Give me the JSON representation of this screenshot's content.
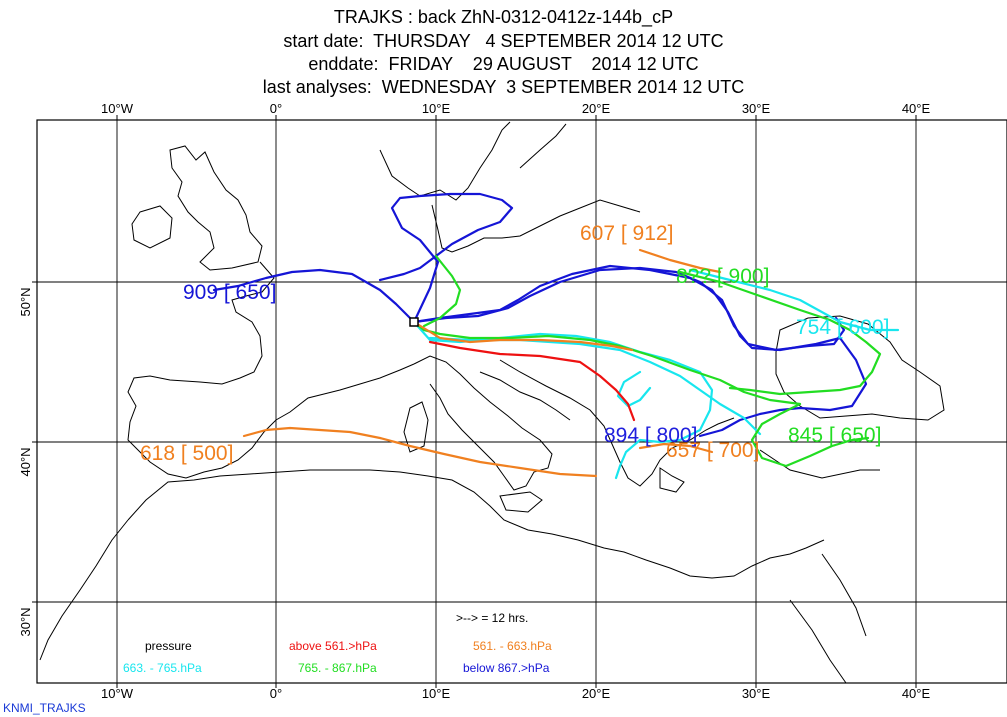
{
  "header": {
    "line1": "TRAJKS : back ZhN-0312-0412z-144b_cP",
    "line2": "start date:  THURSDAY   4 SEPTEMBER 2014 12 UTC",
    "line3": "enddate:  FRIDAY    29 AUGUST    2014 12 UTC",
    "line4": "last analyses:  WEDNESDAY  3 SEPTEMBER 2014 12 UTC"
  },
  "axes": {
    "lon_labels": [
      "10°W",
      "0°",
      "10°E",
      "20°E",
      "30°E",
      "40°E"
    ],
    "lat_labels": [
      "50°N",
      "40°N",
      "30°N"
    ]
  },
  "trajectories": [
    {
      "label": "909 [ 650]",
      "color": "#1515d6"
    },
    {
      "label": "607 [ 912]",
      "color": "#f08020"
    },
    {
      "label": "618 [ 500]",
      "color": "#f08020"
    },
    {
      "label": "754 [ 600]",
      "color": "#18e6ee"
    },
    {
      "label": "894 [ 800]",
      "color": "#2020dd"
    },
    {
      "label": "657 [ 700]",
      "color": "#f08020"
    },
    {
      "label": "845 [ 650]",
      "color": "#22dd22"
    },
    {
      "label": "8?? [ 900]",
      "color": "#22dd22"
    }
  ],
  "legend": {
    "arrow_note": ">--> = 12 hrs.",
    "title": "pressure",
    "items": [
      {
        "text": "above   561.>hPa",
        "color": "#ee1111"
      },
      {
        "text": "561. -     663.hPa",
        "color": "#f08020"
      },
      {
        "text": "663. -     765.hPa",
        "color": "#18e6ee"
      },
      {
        "text": "765. -     867.hPa",
        "color": "#22dd22"
      },
      {
        "text": "below   867.>hPa",
        "color": "#1515d6"
      }
    ]
  },
  "footer": "KNMI_TRAJKS"
}
